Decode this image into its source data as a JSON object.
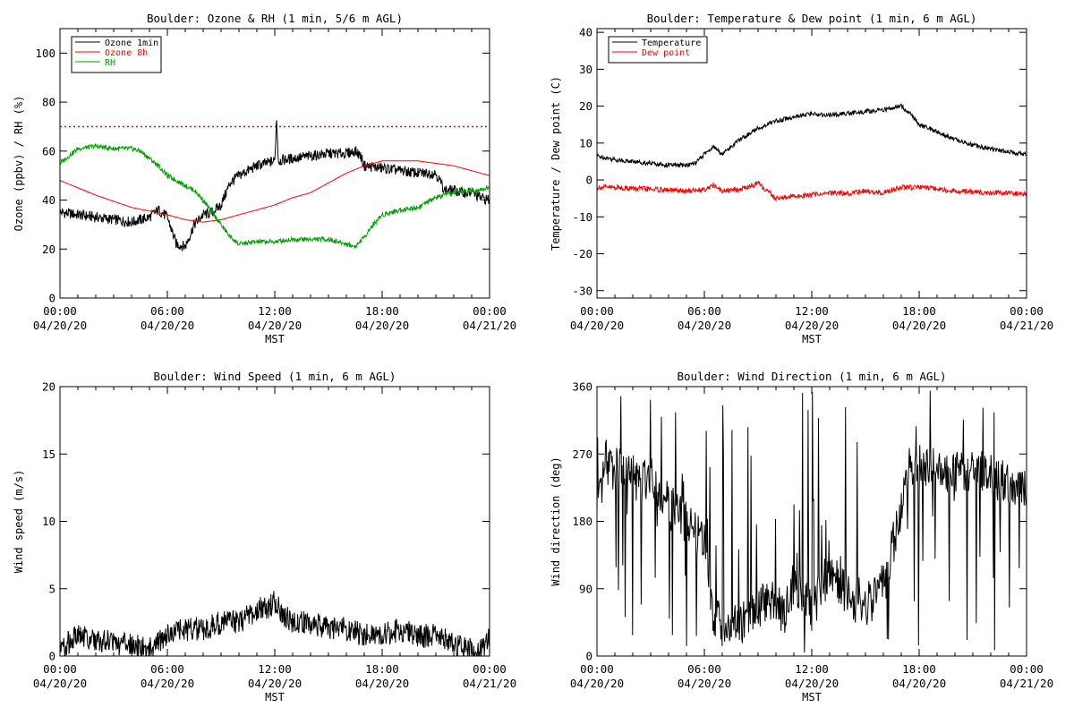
{
  "chart_data": [
    {
      "type": "line",
      "title": "Boulder: Ozone & RH (1 min, 5/6 m AGL)",
      "xlabel": "MST",
      "ylabel": "Ozone (ppbv) / RH (%)",
      "xlim": [
        "04/20/20 00:00",
        "04/21/20 00:00"
      ],
      "ylim": [
        0,
        110
      ],
      "x_tick_labels": [
        [
          "00:00",
          "04/20/20"
        ],
        [
          "06:00",
          "04/20/20"
        ],
        [
          "12:00",
          "04/20/20"
        ],
        [
          "18:00",
          "04/20/20"
        ],
        [
          "00:00",
          "04/21/20"
        ]
      ],
      "y_ticks": [
        0,
        20,
        40,
        60,
        80,
        100
      ],
      "legend": {
        "position": "top-left",
        "entries": [
          "Ozone 1min",
          "Ozone 8h",
          "RH"
        ]
      },
      "reference_line": {
        "y": 70,
        "style": "dotted",
        "color": "#ff0000"
      },
      "series": [
        {
          "name": "Ozone 1min",
          "color": "#000000",
          "x_hours": [
            0,
            1,
            2,
            3,
            4,
            5,
            5.5,
            6,
            6.5,
            7,
            7.5,
            8,
            8.5,
            9,
            9.5,
            10,
            10.5,
            11,
            11.5,
            12,
            12.1,
            12.2,
            13,
            14,
            15,
            16,
            16.5,
            16.8,
            17,
            18,
            19,
            20,
            21,
            21.5,
            22,
            22.5,
            23,
            23.5,
            24
          ],
          "values": [
            35,
            34,
            33,
            32,
            31,
            33,
            36,
            33,
            22,
            21,
            30,
            34,
            35,
            38,
            47,
            50,
            52,
            54,
            55,
            56,
            74,
            56,
            57,
            58,
            59,
            59,
            60,
            58,
            54,
            53,
            52,
            51,
            51,
            44,
            44,
            43,
            43,
            41,
            40
          ]
        },
        {
          "name": "Ozone 8h",
          "color": "#ff0000",
          "x_hours": [
            0,
            2,
            4,
            6,
            7,
            8,
            9,
            10,
            11,
            12,
            13,
            14,
            15,
            16,
            17,
            18,
            19,
            20,
            21,
            22,
            23,
            24
          ],
          "values": [
            48,
            42,
            37,
            34,
            32,
            31,
            32,
            34,
            36,
            38,
            41,
            43,
            47,
            51,
            54,
            56,
            56,
            56,
            55,
            54,
            52,
            50
          ]
        },
        {
          "name": "RH",
          "color": "#00a000",
          "x_hours": [
            0,
            0.5,
            1,
            2,
            3,
            4,
            4.5,
            5,
            5.5,
            6,
            6.5,
            7,
            7.5,
            8,
            8.5,
            9,
            9.5,
            10,
            11,
            12,
            13,
            14,
            15,
            16,
            16.5,
            17,
            17.5,
            18,
            19,
            20,
            21,
            22,
            23,
            24
          ],
          "values": [
            55,
            58,
            61,
            62,
            61,
            61,
            60,
            57,
            54,
            50,
            48,
            46,
            44,
            40,
            35,
            30,
            25,
            22,
            23,
            23,
            24,
            24,
            24,
            22,
            21,
            25,
            30,
            34,
            36,
            37,
            41,
            43,
            44,
            45
          ]
        }
      ]
    },
    {
      "type": "line",
      "title": "Boulder: Temperature & Dew point (1 min, 6 m AGL)",
      "xlabel": "MST",
      "ylabel": "Temperature / Dew point (C)",
      "xlim": [
        "04/20/20 00:00",
        "04/21/20 00:00"
      ],
      "ylim": [
        -32,
        41
      ],
      "x_tick_labels": [
        [
          "00:00",
          "04/20/20"
        ],
        [
          "06:00",
          "04/20/20"
        ],
        [
          "12:00",
          "04/20/20"
        ],
        [
          "18:00",
          "04/20/20"
        ],
        [
          "00:00",
          "04/21/20"
        ]
      ],
      "y_ticks": [
        -30,
        -20,
        -10,
        0,
        10,
        20,
        30,
        40
      ],
      "legend": {
        "position": "top-left",
        "entries": [
          "Temperature",
          "Dew point"
        ]
      },
      "series": [
        {
          "name": "Temperature",
          "color": "#000000",
          "x_hours": [
            0,
            1,
            2,
            3,
            4,
            5,
            5.5,
            6,
            6.5,
            7,
            8,
            9,
            10,
            11,
            12,
            13,
            14,
            15,
            16,
            17,
            17.5,
            18,
            19,
            20,
            21,
            22,
            23,
            24
          ],
          "values": [
            6.5,
            5.5,
            5,
            4.5,
            4,
            4,
            4.5,
            7,
            9,
            7,
            11,
            14,
            16,
            17,
            18,
            17.5,
            18,
            18.5,
            19,
            20,
            18,
            15,
            13,
            11,
            9.5,
            8.5,
            7.5,
            7
          ]
        },
        {
          "name": "Dew point",
          "color": "#ff0000",
          "x_hours": [
            0,
            1,
            2,
            3,
            4,
            5,
            6,
            6.5,
            7,
            8,
            9,
            9.5,
            10,
            11,
            12,
            13,
            14,
            15,
            16,
            17,
            18,
            19,
            20,
            21,
            22,
            23,
            24
          ],
          "values": [
            -2,
            -2,
            -2.3,
            -2.5,
            -2.8,
            -3,
            -2.5,
            -1.5,
            -3,
            -2.5,
            -1,
            -3,
            -5,
            -4.5,
            -4,
            -3.5,
            -3.5,
            -3,
            -3.5,
            -2,
            -2,
            -2.5,
            -3,
            -3.2,
            -3.5,
            -3.5,
            -3.8
          ]
        }
      ]
    },
    {
      "type": "line",
      "title": "Boulder: Wind Speed (1 min, 6 m AGL)",
      "xlabel": "MST",
      "ylabel": "Wind speed (m/s)",
      "xlim": [
        "04/20/20 00:00",
        "04/21/20 00:00"
      ],
      "ylim": [
        0,
        20
      ],
      "x_tick_labels": [
        [
          "00:00",
          "04/20/20"
        ],
        [
          "06:00",
          "04/20/20"
        ],
        [
          "12:00",
          "04/20/20"
        ],
        [
          "18:00",
          "04/20/20"
        ],
        [
          "00:00",
          "04/21/20"
        ]
      ],
      "y_ticks": [
        0,
        5,
        10,
        15,
        20
      ],
      "series": [
        {
          "name": "",
          "color": "#000000",
          "x_hours": [
            0,
            0.5,
            1,
            2,
            3,
            4,
            5,
            5.5,
            6,
            7,
            8,
            9,
            10,
            10.5,
            11,
            11.5,
            12,
            12.5,
            13,
            14,
            15,
            16,
            17,
            18,
            19,
            20,
            21,
            22,
            22.5,
            23,
            23.5,
            24
          ],
          "values": [
            0.5,
            1,
            1.5,
            1.2,
            1,
            0.8,
            0.5,
            1,
            1.5,
            2,
            2,
            2.5,
            2.5,
            3,
            3.5,
            3.5,
            4,
            3,
            2.5,
            2.5,
            2,
            2,
            1.5,
            1.5,
            2,
            1.5,
            1.5,
            1,
            0.5,
            0.5,
            0.5,
            1.5
          ]
        }
      ]
    },
    {
      "type": "line",
      "title": "Boulder: Wind Direction (1 min, 6 m AGL)",
      "xlabel": "MST",
      "ylabel": "Wind direction (deg)",
      "xlim": [
        "04/20/20 00:00",
        "04/21/20 00:00"
      ],
      "ylim": [
        0,
        360
      ],
      "x_tick_labels": [
        [
          "00:00",
          "04/20/20"
        ],
        [
          "06:00",
          "04/20/20"
        ],
        [
          "12:00",
          "04/20/20"
        ],
        [
          "18:00",
          "04/20/20"
        ],
        [
          "00:00",
          "04/21/20"
        ]
      ],
      "y_ticks": [
        0,
        90,
        180,
        270,
        360
      ],
      "series": [
        {
          "name": "",
          "color": "#000000",
          "x_hours": [
            0,
            0.5,
            1,
            2,
            2.5,
            3,
            4,
            5,
            6,
            6.5,
            7,
            8,
            9,
            9.5,
            10,
            10.5,
            11,
            12,
            13,
            14,
            15,
            16,
            17,
            17.5,
            18,
            19,
            20,
            21,
            22,
            23,
            24
          ],
          "values": [
            180,
            260,
            250,
            240,
            230,
            250,
            200,
            180,
            150,
            60,
            40,
            40,
            60,
            80,
            70,
            60,
            100,
            60,
            120,
            80,
            60,
            90,
            200,
            260,
            255,
            250,
            245,
            250,
            240,
            230,
            220
          ]
        }
      ]
    }
  ]
}
